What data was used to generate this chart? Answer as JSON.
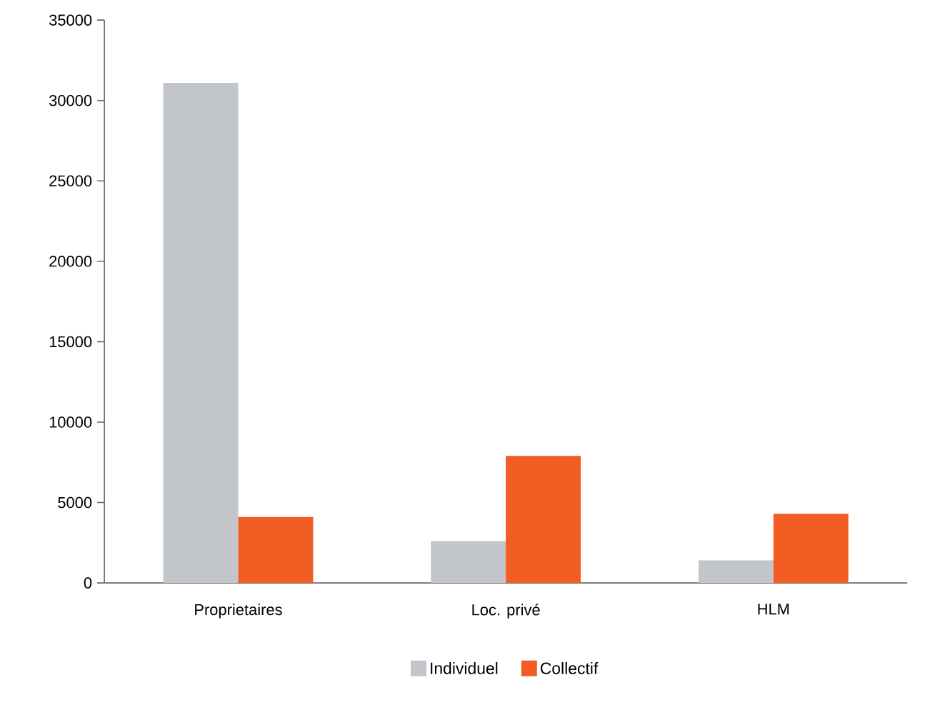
{
  "chart_data": {
    "type": "bar",
    "categories": [
      "Proprietaires",
      "Loc. privé",
      "HLM"
    ],
    "series": [
      {
        "name": "Individuel",
        "color": "#c2c5c9",
        "values": [
          31100,
          2600,
          1400
        ]
      },
      {
        "name": "Collectif",
        "color": "#f15d22",
        "values": [
          4100,
          7900,
          4300
        ]
      }
    ],
    "ylim": [
      0,
      35000
    ],
    "yticks": [
      0,
      5000,
      10000,
      15000,
      20000,
      25000,
      30000,
      35000
    ],
    "grid": false,
    "legend": "bottom"
  }
}
